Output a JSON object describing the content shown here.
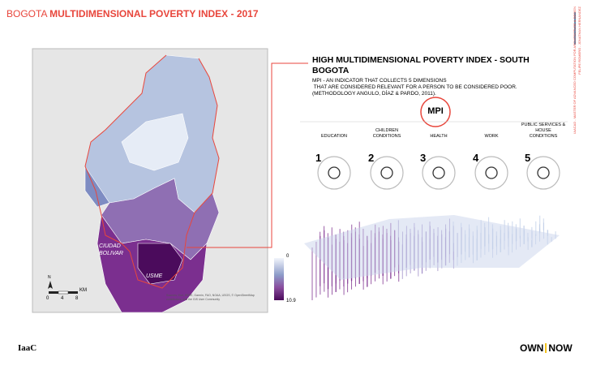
{
  "header": {
    "title_light": "BOGOTA",
    "title_bold": "MULTIDIMENSIONAL POVERTY INDEX - 2017"
  },
  "side_text": [
    "IAACAD - MASTER OF ADVANCED COMPUTATION FOR ARCHITECTURE & DESIGN",
    "FELIPE ROMERO - JONATHAN HERNANDEZ"
  ],
  "map": {
    "labels": [
      [
        "CIUDAD",
        "BOLIVAR"
      ],
      [
        "USME"
      ]
    ],
    "north": "N",
    "scale_ticks": [
      0,
      4,
      8
    ],
    "scale_unit": "KM",
    "attribution": [
      "Sources: Esri, HERE, Garmin, FAO, NOAA, USGS, © OpenStreetMap",
      "contributors, and the GIS User Community"
    ],
    "legend": {
      "min": 0,
      "max": 10.9
    }
  },
  "panel": {
    "heading": [
      "HIGH MULTIDIMENSIONAL POVERTY INDEX - SOUTH",
      "BOGOTA"
    ],
    "description": [
      "MPI - AN INDICATOR THAT COLLECTS 5 DIMENSIONS",
      " THAT ARE CONSIDERED RELEVANT FOR A PERSON TO BE CONSIDERED POOR.",
      "(METHODOLOGY ANGULO, DÍAZ & PARDO, 2011)."
    ],
    "badge": "MPI",
    "dimensions": [
      {
        "number": 1,
        "label": [
          "EDUCATION"
        ]
      },
      {
        "number": 2,
        "label": [
          "CHILDREN",
          "CONDITIONS"
        ]
      },
      {
        "number": 3,
        "label": [
          "HEALTH"
        ]
      },
      {
        "number": 4,
        "label": [
          "WORK"
        ]
      },
      {
        "number": 5,
        "label": [
          "PUBLIC SERVICES &",
          "HOUSE",
          "CONDITIONS"
        ]
      }
    ]
  },
  "footer": {
    "logo": "IaaC",
    "brand": [
      "OWN",
      "NOW"
    ]
  }
}
